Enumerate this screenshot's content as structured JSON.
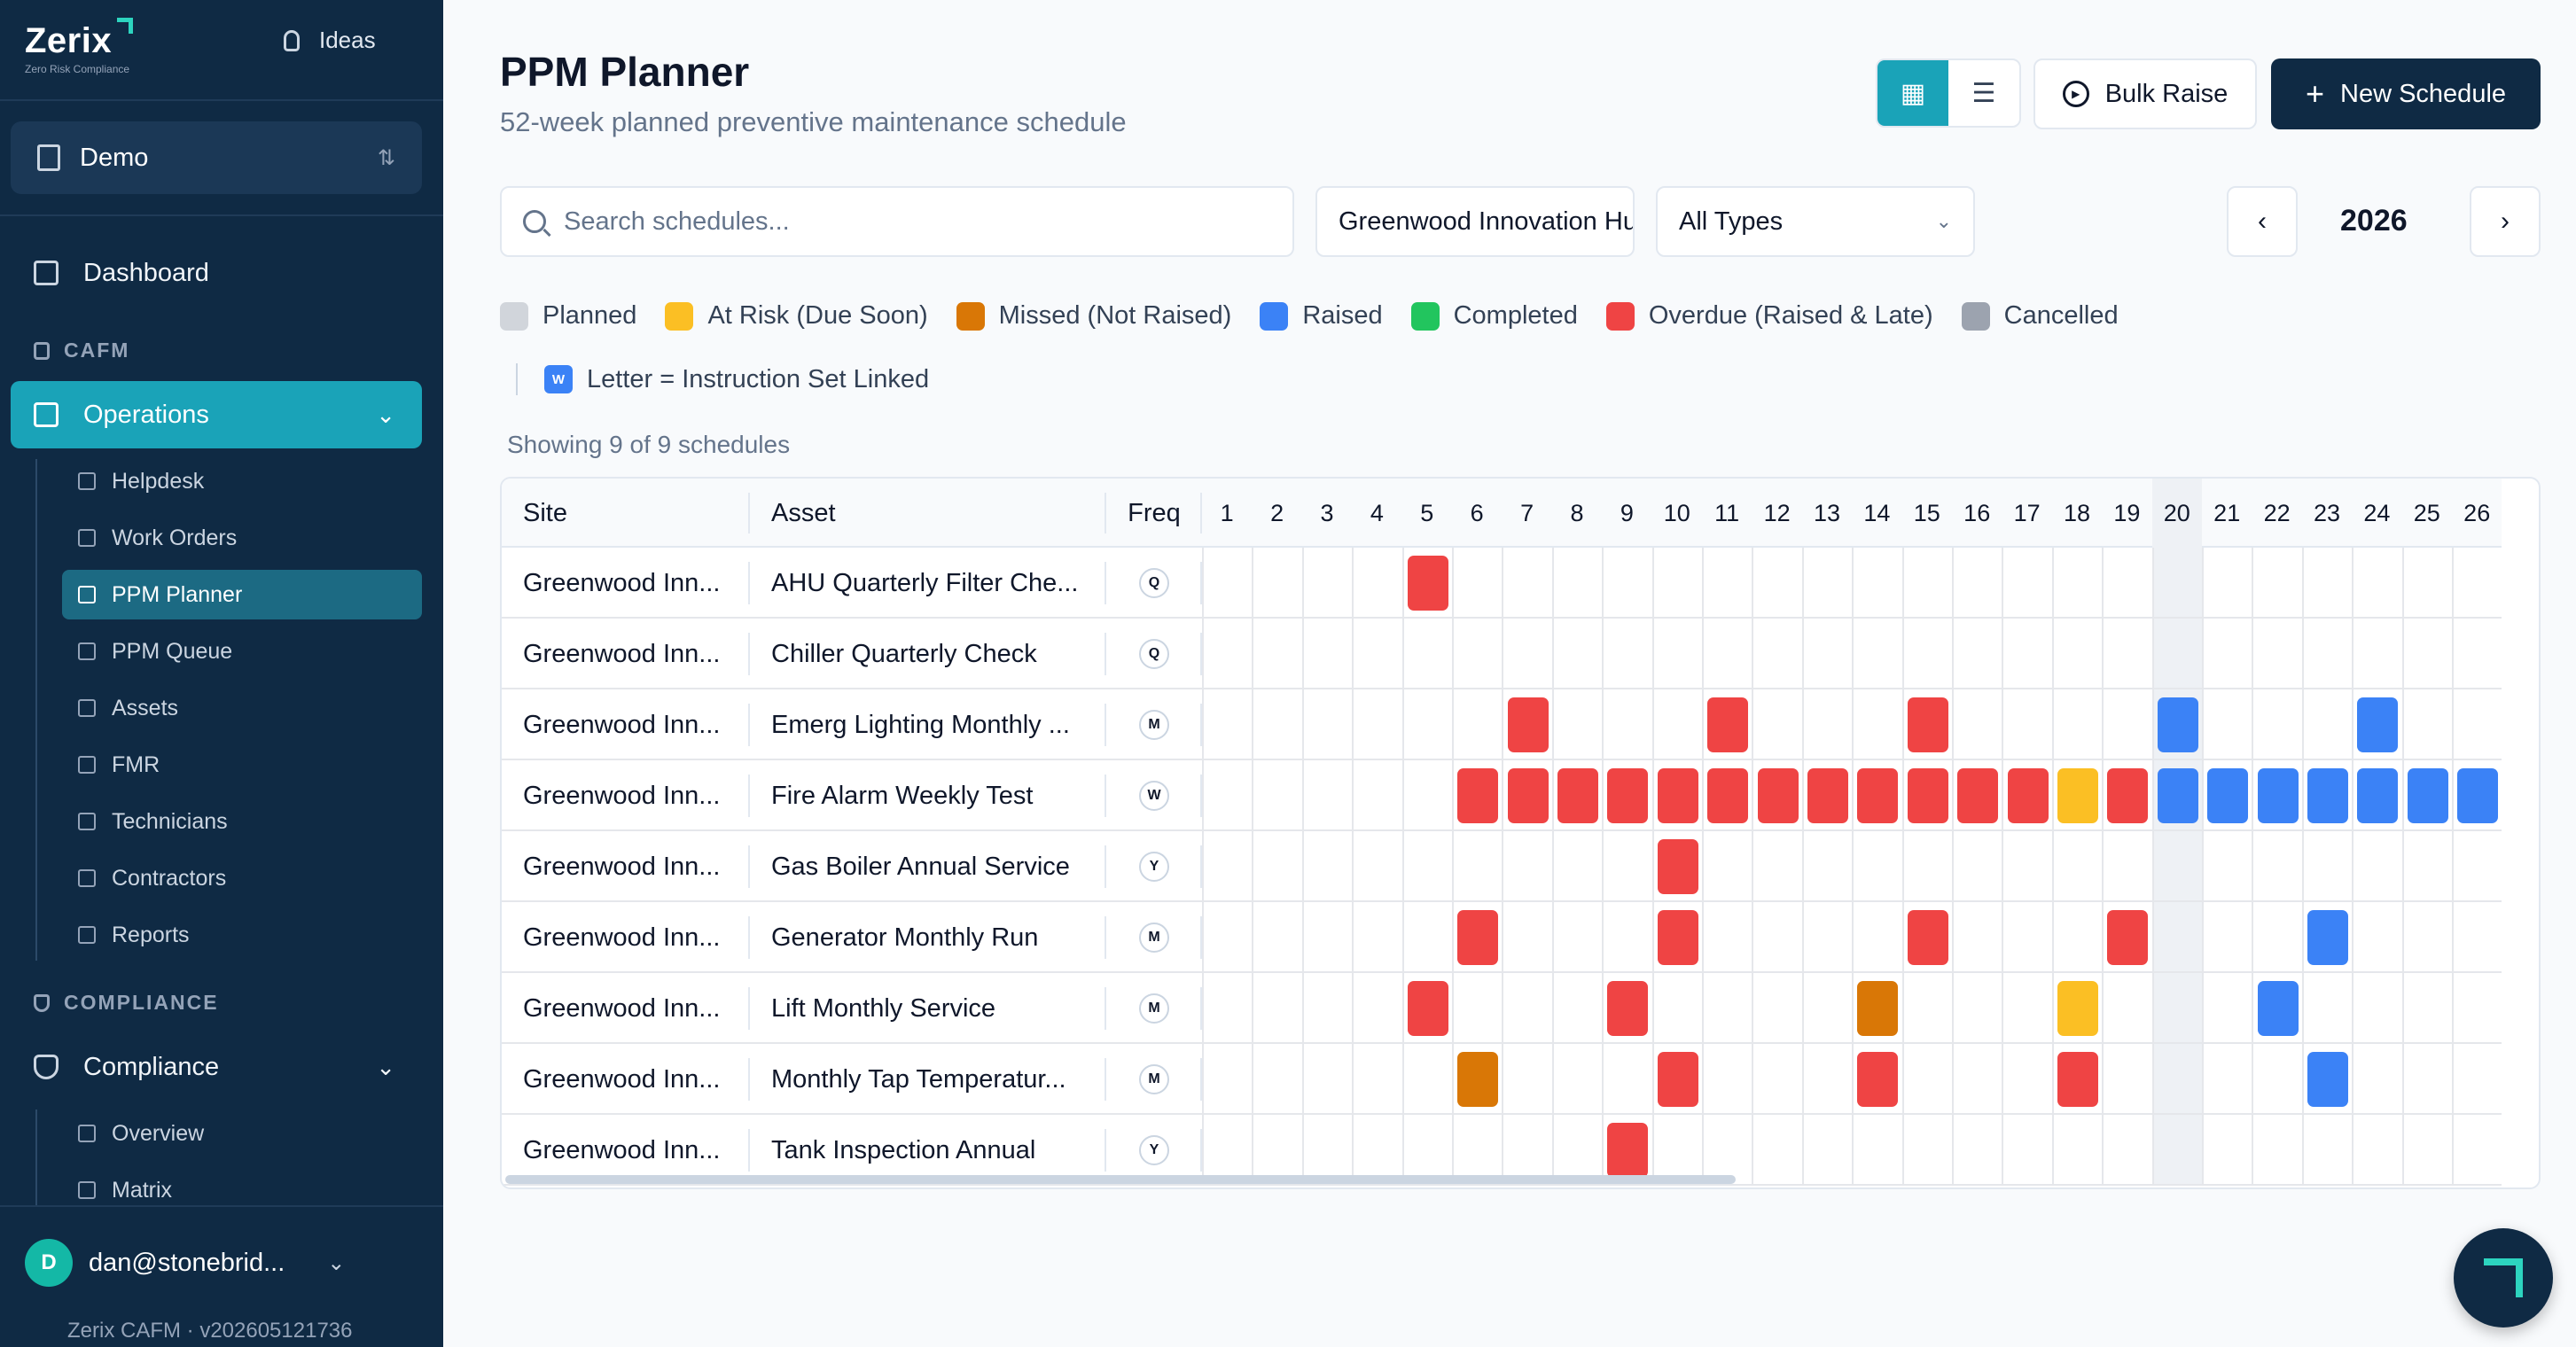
{
  "sidebar": {
    "brand": {
      "name": "Zerix",
      "tagline": "Zero Risk Compliance"
    },
    "ideas_label": "Ideas",
    "org_selector": "Demo",
    "dashboard_label": "Dashboard",
    "cafm_section": "CAFM",
    "operations_label": "Operations",
    "operations_items": [
      "Helpdesk",
      "Work Orders",
      "PPM Planner",
      "PPM Queue",
      "Assets",
      "FMR",
      "Technicians",
      "Contractors",
      "Reports"
    ],
    "compliance_section": "COMPLIANCE",
    "compliance_label": "Compliance",
    "compliance_items": [
      "Overview",
      "Matrix"
    ],
    "user": {
      "initial": "D",
      "email": "dan@stonebrid..."
    },
    "version": "Zerix CAFM · v202605121736"
  },
  "header": {
    "title": "PPM Planner",
    "subtitle": "52-week planned preventive maintenance schedule",
    "bulk_raise": "Bulk Raise",
    "new_schedule": "New Schedule"
  },
  "filters": {
    "search_placeholder": "Search schedules...",
    "site": "Greenwood Innovation Hub",
    "type": "All Types",
    "year": "2026"
  },
  "legend": [
    {
      "label": "Planned",
      "color": "#d1d5db"
    },
    {
      "label": "At Risk (Due Soon)",
      "color": "#fbbf24"
    },
    {
      "label": "Missed (Not Raised)",
      "color": "#d97706"
    },
    {
      "label": "Raised",
      "color": "#3b82f6"
    },
    {
      "label": "Completed",
      "color": "#22c55e"
    },
    {
      "label": "Overdue (Raised & Late)",
      "color": "#ef4444"
    },
    {
      "label": "Cancelled",
      "color": "#9ca3af"
    }
  ],
  "legend_letter": {
    "badge": "W",
    "label": "Letter = Instruction Set Linked"
  },
  "showing": "Showing 9 of 9 schedules",
  "table": {
    "headers": {
      "site": "Site",
      "asset": "Asset",
      "freq": "Freq"
    },
    "weeks": [
      "1",
      "2",
      "3",
      "4",
      "5",
      "6",
      "7",
      "8",
      "9",
      "10",
      "11",
      "12",
      "13",
      "14",
      "15",
      "16",
      "17",
      "18",
      "19",
      "20",
      "21",
      "22",
      "23",
      "24",
      "25",
      "26"
    ],
    "current_week": 20,
    "status_colors": {
      "overdue": "#ef4444",
      "raised": "#3b82f6",
      "at_risk": "#fbbf24",
      "missed": "#d97706"
    },
    "rows": [
      {
        "site": "Greenwood Inn...",
        "asset": "AHU Quarterly Filter Che...",
        "freq": "Q",
        "cells": {
          "5": "overdue"
        }
      },
      {
        "site": "Greenwood Inn...",
        "asset": "Chiller Quarterly Check",
        "freq": "Q",
        "cells": {}
      },
      {
        "site": "Greenwood Inn...",
        "asset": "Emerg Lighting Monthly ...",
        "freq": "M",
        "cells": {
          "7": "overdue",
          "11": "overdue",
          "15": "overdue",
          "20": "raised",
          "24": "raised"
        }
      },
      {
        "site": "Greenwood Inn...",
        "asset": "Fire Alarm Weekly Test",
        "freq": "W",
        "cells": {
          "6": "overdue",
          "7": "overdue",
          "8": "overdue",
          "9": "overdue",
          "10": "overdue",
          "11": "overdue",
          "12": "overdue",
          "13": "overdue",
          "14": "overdue",
          "15": "overdue",
          "16": "overdue",
          "17": "overdue",
          "18": "at_risk",
          "19": "overdue",
          "20": "raised",
          "21": "raised",
          "22": "raised",
          "23": "raised",
          "24": "raised",
          "25": "raised",
          "26": "raised"
        }
      },
      {
        "site": "Greenwood Inn...",
        "asset": "Gas Boiler Annual Service",
        "freq": "Y",
        "cells": {
          "10": "overdue"
        }
      },
      {
        "site": "Greenwood Inn...",
        "asset": "Generator Monthly Run",
        "freq": "M",
        "cells": {
          "6": "overdue",
          "10": "overdue",
          "15": "overdue",
          "19": "overdue",
          "23": "raised"
        }
      },
      {
        "site": "Greenwood Inn...",
        "asset": "Lift Monthly Service",
        "freq": "M",
        "cells": {
          "5": "overdue",
          "9": "overdue",
          "14": "missed",
          "18": "at_risk",
          "22": "raised"
        }
      },
      {
        "site": "Greenwood Inn...",
        "asset": "Monthly Tap Temperatur...",
        "freq": "M",
        "cells": {
          "6": "missed",
          "10": "overdue",
          "14": "overdue",
          "18": "overdue",
          "23": "raised"
        }
      },
      {
        "site": "Greenwood Inn...",
        "asset": "Tank Inspection Annual",
        "freq": "Y",
        "cells": {
          "9": "overdue"
        }
      }
    ]
  }
}
